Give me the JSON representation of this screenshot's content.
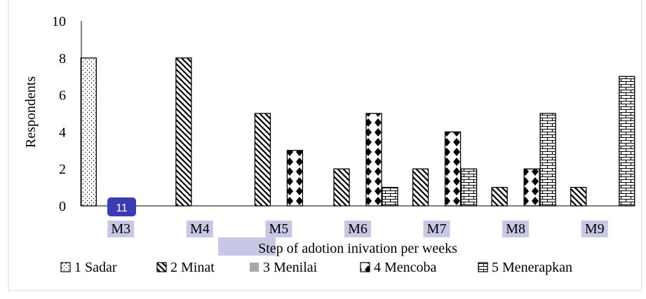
{
  "chart_data": {
    "type": "bar",
    "title": "",
    "xlabel": "Step of adotion inivation per weeks",
    "ylabel": "Respondents",
    "ylim": [
      0,
      10
    ],
    "yticks": [
      "0",
      "2",
      "4",
      "6",
      "8",
      "10"
    ],
    "grid": false,
    "legend_placement": "bottom",
    "categories": [
      "M3",
      "M4",
      "M5",
      "M6",
      "M7",
      "M8",
      "M9"
    ],
    "series": [
      {
        "name": "1 Sadar",
        "pattern": "dots",
        "values": [
          8,
          0,
          0,
          0,
          0,
          0,
          0
        ]
      },
      {
        "name": "2 Minat",
        "pattern": "diagonal",
        "values": [
          0,
          8,
          5,
          2,
          2,
          1,
          1
        ]
      },
      {
        "name": "3 Menilai",
        "pattern": "gray",
        "values": [
          0,
          0,
          0,
          0,
          0,
          0,
          0
        ]
      },
      {
        "name": "4 Mencoba",
        "pattern": "diamonds",
        "values": [
          0,
          0,
          3,
          5,
          4,
          2,
          0
        ]
      },
      {
        "name": "5 Menerapkan",
        "pattern": "bricks",
        "values": [
          0,
          0,
          0,
          1,
          2,
          5,
          7
        ]
      }
    ]
  },
  "badge": {
    "label": "11",
    "color": "#3b3bb3"
  },
  "highlight_color": "#c8c8e6"
}
